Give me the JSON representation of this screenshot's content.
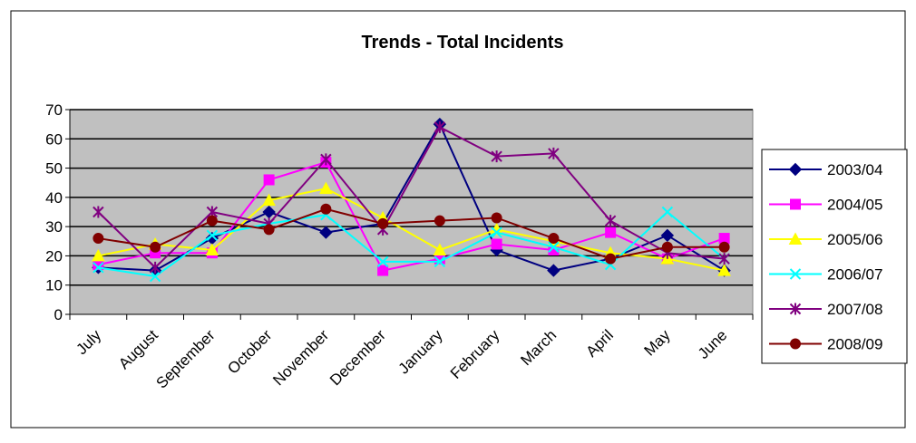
{
  "chart_data": {
    "type": "line",
    "title": "Trends - Total Incidents",
    "categories": [
      "July",
      "August",
      "September",
      "October",
      "November",
      "December",
      "January",
      "February",
      "March",
      "April",
      "May",
      "June"
    ],
    "ylim": [
      0,
      70
    ],
    "yticks": [
      "0",
      "10",
      "20",
      "30",
      "40",
      "50",
      "60",
      "70"
    ],
    "grid": true,
    "legend_position": "right",
    "plot_background": "#c0c0c0",
    "series": [
      {
        "name": "2003/04",
        "color": "#000080",
        "marker": "diamond",
        "values": [
          16,
          15,
          26,
          35,
          28,
          31,
          65,
          22,
          15,
          19,
          27,
          15
        ]
      },
      {
        "name": "2004/05",
        "color": "#ff00ff",
        "marker": "square",
        "values": [
          17,
          21,
          21,
          46,
          52,
          15,
          19,
          24,
          22,
          28,
          19,
          26
        ]
      },
      {
        "name": "2005/06",
        "color": "#ffff00",
        "marker": "triangle",
        "values": [
          20,
          24,
          22,
          39,
          43,
          33,
          22,
          29,
          25,
          21,
          19,
          15
        ]
      },
      {
        "name": "2006/07",
        "color": "#00ffff",
        "marker": "x",
        "values": [
          16,
          13,
          27,
          31,
          34,
          18,
          18,
          28,
          23,
          17,
          35,
          19
        ]
      },
      {
        "name": "2007/08",
        "color": "#800080",
        "marker": "star",
        "values": [
          35,
          16,
          35,
          31,
          53,
          29,
          64,
          54,
          55,
          32,
          21,
          19
        ]
      },
      {
        "name": "2008/09",
        "color": "#800000",
        "marker": "circle",
        "values": [
          26,
          23,
          32,
          29,
          36,
          31,
          32,
          33,
          26,
          19,
          23,
          23
        ]
      }
    ]
  }
}
